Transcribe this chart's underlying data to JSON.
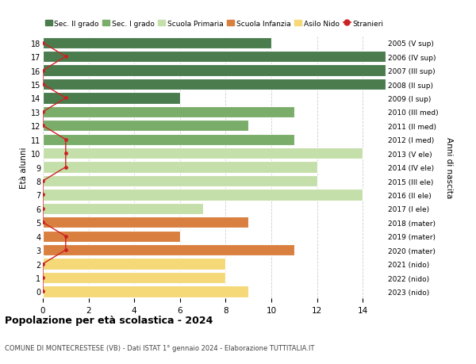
{
  "ages": [
    18,
    17,
    16,
    15,
    14,
    13,
    12,
    11,
    10,
    9,
    8,
    7,
    6,
    5,
    4,
    3,
    2,
    1,
    0
  ],
  "years": [
    "2005 (V sup)",
    "2006 (IV sup)",
    "2007 (III sup)",
    "2008 (II sup)",
    "2009 (I sup)",
    "2010 (III med)",
    "2011 (II med)",
    "2012 (I med)",
    "2013 (V ele)",
    "2014 (IV ele)",
    "2015 (III ele)",
    "2016 (II ele)",
    "2017 (I ele)",
    "2018 (mater)",
    "2019 (mater)",
    "2020 (mater)",
    "2021 (nido)",
    "2022 (nido)",
    "2023 (nido)"
  ],
  "values": [
    10,
    15,
    15,
    15,
    6,
    11,
    9,
    11,
    14,
    12,
    12,
    14,
    7,
    9,
    6,
    11,
    8,
    8,
    9
  ],
  "stranieri": [
    0,
    1,
    0,
    0,
    1,
    0,
    0,
    1,
    1,
    1,
    0,
    0,
    0,
    0,
    1,
    1,
    0,
    0,
    0
  ],
  "categories": {
    "sec2": [
      18,
      17,
      16,
      15,
      14
    ],
    "sec1": [
      13,
      12,
      11
    ],
    "primaria": [
      10,
      9,
      8,
      7,
      6
    ],
    "infanzia": [
      5,
      4,
      3
    ],
    "nido": [
      2,
      1,
      0
    ]
  },
  "colors": {
    "sec2": "#4a7c4e",
    "sec1": "#7aad6a",
    "primaria": "#c5dfaa",
    "infanzia": "#d98040",
    "nido": "#f5d878"
  },
  "legend_labels": [
    "Sec. II grado",
    "Sec. I grado",
    "Scuola Primaria",
    "Scuola Infanzia",
    "Asilo Nido",
    "Stranieri"
  ],
  "legend_colors": [
    "#4a7c4e",
    "#7aad6a",
    "#c5dfaa",
    "#d98040",
    "#f5d878",
    "#cc2222"
  ],
  "title": "Popolazione per età scolastica - 2024",
  "subtitle": "COMUNE DI MONTECRESTESE (VB) - Dati ISTAT 1° gennaio 2024 - Elaborazione TUTTITALIA.IT",
  "ylabel_left": "Età alunni",
  "ylabel_right": "Anni di nascita",
  "xlim": [
    0,
    15
  ],
  "ylim": [
    -0.5,
    18.5
  ],
  "xticks": [
    0,
    2,
    4,
    6,
    8,
    10,
    12,
    14
  ],
  "bg_color": "#ffffff",
  "grid_color": "#cccccc"
}
